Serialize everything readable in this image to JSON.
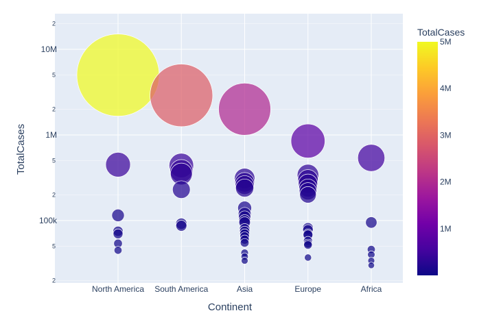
{
  "chart_data": {
    "type": "scatter",
    "xlabel": "Continent",
    "ylabel": "TotalCases",
    "yscale": "log",
    "ylim": [
      28000,
      22000000
    ],
    "grid": true,
    "categories": [
      "North America",
      "South America",
      "Asia",
      "Europe",
      "Africa"
    ],
    "y_major_ticks": [
      {
        "value": 100000,
        "label": "100k"
      },
      {
        "value": 1000000,
        "label": "1M"
      },
      {
        "value": 10000000,
        "label": "10M"
      }
    ],
    "y_minor_ticks": [
      {
        "value": 20000,
        "label": "2"
      },
      {
        "value": 50000,
        "label": "5"
      },
      {
        "value": 200000,
        "label": "2"
      },
      {
        "value": 500000,
        "label": "5"
      },
      {
        "value": 2000000,
        "label": "2"
      },
      {
        "value": 5000000,
        "label": "5"
      },
      {
        "value": 20000000,
        "label": "2"
      }
    ],
    "colorbar": {
      "title": "TotalCases",
      "min": 0,
      "max": 5000000,
      "ticks": [
        {
          "value": 1000000,
          "label": "1M"
        },
        {
          "value": 2000000,
          "label": "2M"
        },
        {
          "value": 3000000,
          "label": "3M"
        },
        {
          "value": 4000000,
          "label": "4M"
        },
        {
          "value": 5000000,
          "label": "5M"
        }
      ],
      "colors": [
        "#0d0887",
        "#46039f",
        "#7201a8",
        "#9c179e",
        "#bd3786",
        "#d8576b",
        "#ed7953",
        "#fb9f3a",
        "#fdca26",
        "#f0f921"
      ]
    },
    "points": [
      {
        "continent": "North America",
        "value": 5000000
      },
      {
        "continent": "North America",
        "value": 450000
      },
      {
        "continent": "North America",
        "value": 115000
      },
      {
        "continent": "North America",
        "value": 75000
      },
      {
        "continent": "North America",
        "value": 70000
      },
      {
        "continent": "North America",
        "value": 54000
      },
      {
        "continent": "North America",
        "value": 45000
      },
      {
        "continent": "South America",
        "value": 2900000
      },
      {
        "continent": "South America",
        "value": 440000
      },
      {
        "continent": "South America",
        "value": 380000
      },
      {
        "continent": "South America",
        "value": 350000
      },
      {
        "continent": "South America",
        "value": 230000
      },
      {
        "continent": "South America",
        "value": 92000
      },
      {
        "continent": "South America",
        "value": 87000
      },
      {
        "continent": "Asia",
        "value": 2000000
      },
      {
        "continent": "Asia",
        "value": 310000
      },
      {
        "continent": "Asia",
        "value": 280000
      },
      {
        "continent": "Asia",
        "value": 260000
      },
      {
        "continent": "Asia",
        "value": 240000
      },
      {
        "continent": "Asia",
        "value": 140000
      },
      {
        "continent": "Asia",
        "value": 120000
      },
      {
        "continent": "Asia",
        "value": 110000
      },
      {
        "continent": "Asia",
        "value": 100000
      },
      {
        "continent": "Asia",
        "value": 95000
      },
      {
        "continent": "Asia",
        "value": 80000
      },
      {
        "continent": "Asia",
        "value": 75000
      },
      {
        "continent": "Asia",
        "value": 70000
      },
      {
        "continent": "Asia",
        "value": 65000
      },
      {
        "continent": "Asia",
        "value": 60000
      },
      {
        "continent": "Asia",
        "value": 55000
      },
      {
        "continent": "Asia",
        "value": 42000
      },
      {
        "continent": "Asia",
        "value": 38000
      },
      {
        "continent": "Asia",
        "value": 34000
      },
      {
        "continent": "Europe",
        "value": 850000
      },
      {
        "continent": "Europe",
        "value": 340000
      },
      {
        "continent": "Europe",
        "value": 300000
      },
      {
        "continent": "Europe",
        "value": 270000
      },
      {
        "continent": "Europe",
        "value": 240000
      },
      {
        "continent": "Europe",
        "value": 220000
      },
      {
        "continent": "Europe",
        "value": 200000
      },
      {
        "continent": "Europe",
        "value": 82000
      },
      {
        "continent": "Europe",
        "value": 78000
      },
      {
        "continent": "Europe",
        "value": 70000
      },
      {
        "continent": "Europe",
        "value": 68000
      },
      {
        "continent": "Europe",
        "value": 58000
      },
      {
        "continent": "Europe",
        "value": 54000
      },
      {
        "continent": "Europe",
        "value": 52000
      },
      {
        "continent": "Europe",
        "value": 37000
      },
      {
        "continent": "Africa",
        "value": 540000
      },
      {
        "continent": "Africa",
        "value": 95000
      },
      {
        "continent": "Africa",
        "value": 46000
      },
      {
        "continent": "Africa",
        "value": 40000
      },
      {
        "continent": "Africa",
        "value": 34000
      },
      {
        "continent": "Africa",
        "value": 30000
      }
    ]
  }
}
